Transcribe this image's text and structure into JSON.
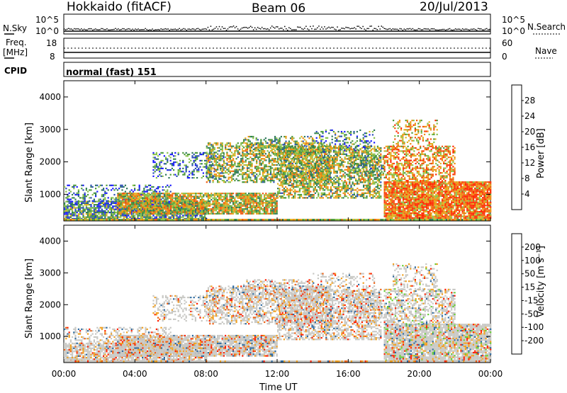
{
  "header": {
    "station": "Hokkaido (fitACF)",
    "beam": "Beam 06",
    "date": "20/Jul/2013"
  },
  "top_strips": {
    "nsky_label": "N.Sky",
    "nsky_ticks": [
      "10^5",
      "10^0"
    ],
    "nsearch_label": "N.Search",
    "nsearch_ticks": [
      "10^5",
      "10^0"
    ],
    "freq_label": "Freq.",
    "freq_unit": "[MHz]",
    "freq_ticks": [
      "18",
      "8"
    ],
    "nave_label": "Nave",
    "nave_ticks": [
      "60",
      "0"
    ],
    "cpid_label": "CPID",
    "cpid_value": "normal (fast) 151"
  },
  "chart_data": [
    {
      "type": "heatmap",
      "panel": "power",
      "ylabel": "Slant Range [km]",
      "xlabel": "Time UT",
      "x_tick_labels": [
        "00:00",
        "04:00",
        "08:00",
        "12:00",
        "16:00",
        "20:00",
        "00:00"
      ],
      "y_tick_labels": [
        "1000",
        "2000",
        "3000",
        "4000"
      ],
      "xlim_hours": [
        0,
        24
      ],
      "ylim_km": [
        180,
        4500
      ],
      "colorbar": {
        "label": "Power [dB]",
        "tick_labels": [
          "4",
          "8",
          "12",
          "16",
          "20",
          "24",
          "28"
        ],
        "colors": [
          "#1a1aff",
          "#2b4fb5",
          "#2f7a5a",
          "#4d9a3a",
          "#88c24a",
          "#e0b020",
          "#f08c10",
          "#f05a10",
          "#ff2a00"
        ]
      }
    },
    {
      "type": "heatmap",
      "panel": "velocity",
      "ylabel": "Slant Range [km]",
      "xlabel": "Time UT",
      "x_tick_labels": [
        "00:00",
        "04:00",
        "08:00",
        "12:00",
        "16:00",
        "20:00",
        "00:00"
      ],
      "y_tick_labels": [
        "1000",
        "2000",
        "3000",
        "4000"
      ],
      "xlim_hours": [
        0,
        24
      ],
      "ylim_km": [
        180,
        4500
      ],
      "colorbar": {
        "label": "Velocity [m s⁻¹]",
        "tick_labels": [
          "200",
          "100",
          "50",
          "15",
          "-15",
          "-50",
          "-100",
          "-200"
        ],
        "colors": [
          "#2233bb",
          "#2e6aa0",
          "#2f8a5a",
          "#66cc33",
          "#c8c8c4",
          "#f0a020",
          "#f06010",
          "#ff2000"
        ]
      }
    }
  ]
}
